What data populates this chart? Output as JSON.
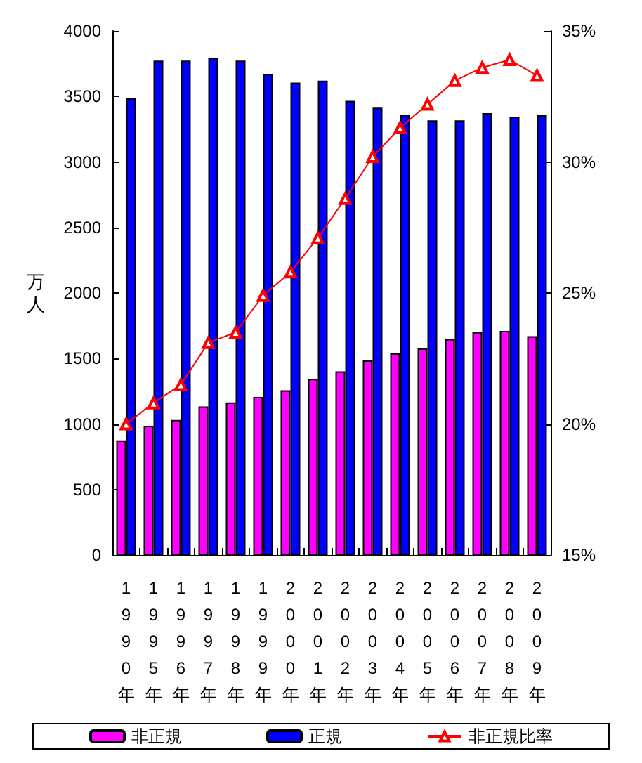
{
  "chart_data": {
    "type": "bar",
    "ylabel": "万人",
    "categories": [
      "1990年",
      "1995年",
      "1996年",
      "1997年",
      "1998年",
      "1999年",
      "2000年",
      "2001年",
      "2002年",
      "2003年",
      "2004年",
      "2005年",
      "2006年",
      "2007年",
      "2008年",
      "2009年"
    ],
    "series": [
      {
        "name": "非正規",
        "color": "#ff00ff",
        "values": [
          876,
          986,
          1031,
          1134,
          1165,
          1206,
          1258,
          1344,
          1402,
          1485,
          1540,
          1577,
          1649,
          1701,
          1711,
          1670
        ]
      },
      {
        "name": "正規",
        "color": "#0000ff",
        "values": [
          3486,
          3774,
          3774,
          3795,
          3774,
          3671,
          3606,
          3620,
          3466,
          3414,
          3360,
          3318,
          3318,
          3373,
          3346,
          3356
        ]
      },
      {
        "name": "非正規比率",
        "type": "line",
        "axis": "y2",
        "color": "#ff0000",
        "marker": "triangle",
        "values": [
          20.0,
          20.8,
          21.5,
          23.1,
          23.5,
          24.9,
          25.8,
          27.1,
          28.6,
          30.2,
          31.3,
          32.2,
          33.1,
          33.6,
          33.9,
          33.3
        ]
      }
    ],
    "ylim": [
      0,
      4000
    ],
    "yticks": [
      0,
      500,
      1000,
      1500,
      2000,
      2500,
      3000,
      3500,
      4000
    ],
    "y2lim": [
      15,
      35
    ],
    "y2ticks": [
      {
        "value": 15,
        "label": "15%"
      },
      {
        "value": 20,
        "label": "20%"
      },
      {
        "value": 25,
        "label": "25%"
      },
      {
        "value": 30,
        "label": "30%"
      },
      {
        "value": 35,
        "label": "35%"
      }
    ],
    "grid": false,
    "legend": "bottom"
  }
}
